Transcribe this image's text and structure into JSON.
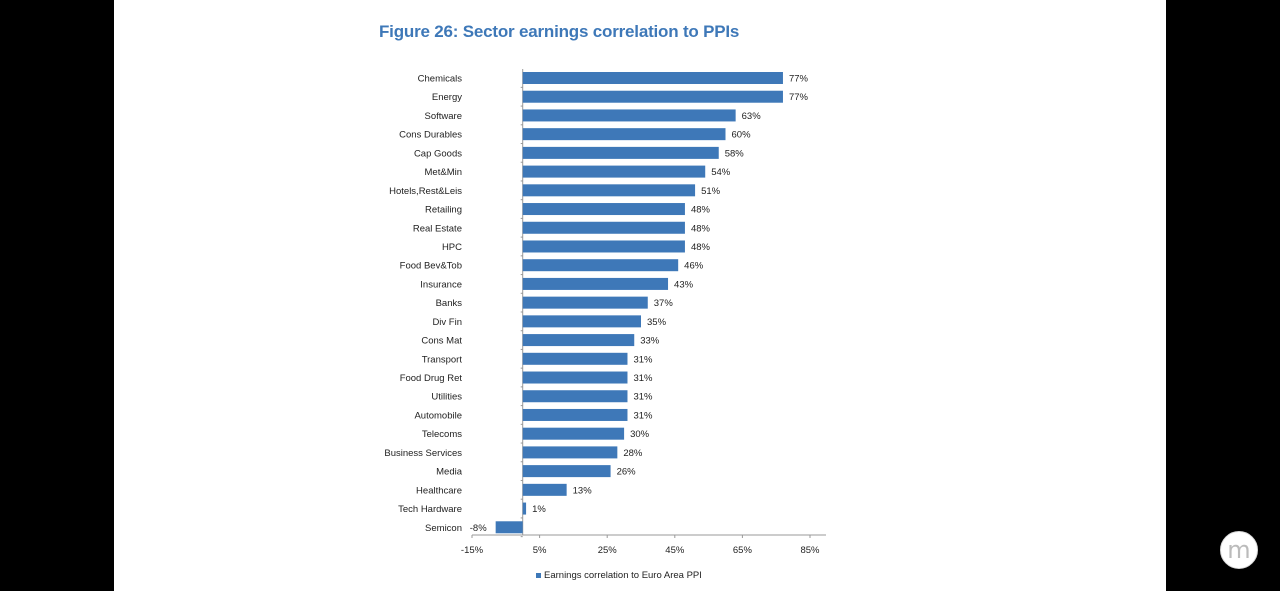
{
  "logo": {
    "icon": "m-circle-logo"
  },
  "chart_data": {
    "type": "bar",
    "orientation": "horizontal",
    "title": "Figure 26: Sector earnings correlation to PPIs",
    "categories": [
      "Chemicals",
      "Energy",
      "Software",
      "Cons Durables",
      "Cap Goods",
      "Met&Min",
      "Hotels,Rest&Leis",
      "Retailing",
      "Real Estate",
      "HPC",
      "Food Bev&Tob",
      "Insurance",
      "Banks",
      "Div Fin",
      "Cons Mat",
      "Transport",
      "Food Drug Ret",
      "Utilities",
      "Automobile",
      "Telecoms",
      "Business Services",
      "Media",
      "Healthcare",
      "Tech Hardware",
      "Semicon"
    ],
    "series": [
      {
        "name": "Earnings correlation to Euro Area PPI",
        "values": [
          77,
          77,
          63,
          60,
          58,
          54,
          51,
          48,
          48,
          48,
          46,
          43,
          37,
          35,
          33,
          31,
          31,
          31,
          31,
          30,
          28,
          26,
          13,
          1,
          -8
        ],
        "labels": [
          "77%",
          "77%",
          "63%",
          "60%",
          "58%",
          "54%",
          "51%",
          "48%",
          "48%",
          "48%",
          "46%",
          "43%",
          "37%",
          "35%",
          "33%",
          "31%",
          "31%",
          "31%",
          "31%",
          "30%",
          "28%",
          "26%",
          "13%",
          "1%",
          "-8%"
        ]
      }
    ],
    "xlim": [
      -15,
      85
    ],
    "xticks": [
      -15,
      5,
      25,
      45,
      65,
      85
    ],
    "xtick_labels": [
      "-15%",
      "5%",
      "25%",
      "45%",
      "65%",
      "85%"
    ],
    "grid": false,
    "legend_position": "bottom",
    "bar_color": "#3e78b8"
  }
}
